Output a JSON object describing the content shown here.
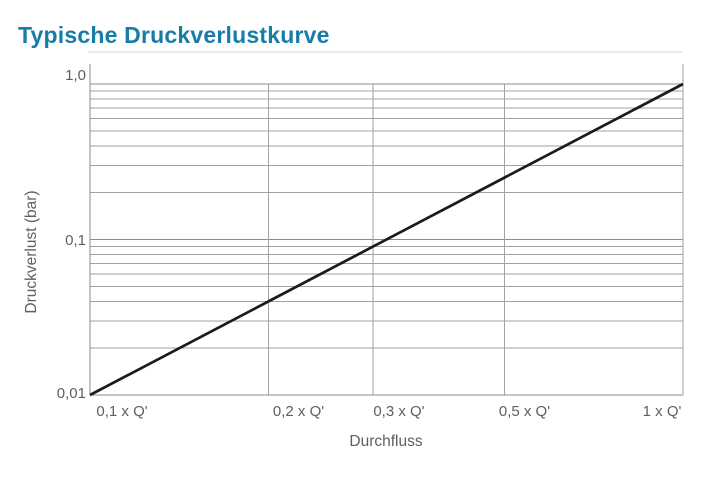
{
  "title": {
    "text": "Typische Druckverlustkurve"
  },
  "colors": {
    "title": "#187CA8",
    "text_gray": "#5f5f5f",
    "grid_minor": "#a2a2a2",
    "grid_major": "#8c8c8c",
    "axis": "#8c8c8c",
    "frame_light": "#d8d8d8",
    "curve": "#1b1b1b",
    "background": "#ffffff"
  },
  "chart_data": {
    "type": "line",
    "title": "Typische Druckverlustkurve",
    "xlabel": "Durchfluss",
    "ylabel": "Druckverlust (bar)",
    "x_scale": "log",
    "y_scale": "log",
    "xlim": [
      0.1,
      1.0
    ],
    "ylim": [
      0.01,
      1.35
    ],
    "grid": true,
    "legend": false,
    "x_ticks": [
      {
        "value": 0.1,
        "label": "0,1 x Q'"
      },
      {
        "value": 0.2,
        "label": "0,2 x Q'"
      },
      {
        "value": 0.3,
        "label": "0,3 x Q'"
      },
      {
        "value": 0.5,
        "label": "0,5 x Q'"
      },
      {
        "value": 1.0,
        "label": "1 x Q'"
      }
    ],
    "y_ticks": [
      {
        "value": 1.0,
        "label": "1,0"
      },
      {
        "value": 0.1,
        "label": "0,1"
      },
      {
        "value": 0.01,
        "label": "0,01"
      }
    ],
    "x_gridlines": [
      0.2,
      0.3,
      0.5
    ],
    "y_gridlines_major": [
      0.1,
      1.0
    ],
    "y_gridlines_minor": [
      0.02,
      0.03,
      0.04,
      0.05,
      0.06,
      0.07,
      0.08,
      0.09,
      0.2,
      0.3,
      0.4,
      0.5,
      0.6,
      0.7,
      0.8,
      0.9
    ],
    "series": [
      {
        "name": "Druckverlustkurve",
        "points": [
          {
            "x": 0.1,
            "y": 0.01
          },
          {
            "x": 0.2,
            "y": 0.04
          },
          {
            "x": 0.3,
            "y": 0.09
          },
          {
            "x": 0.5,
            "y": 0.25
          },
          {
            "x": 1.0,
            "y": 1.0
          }
        ]
      }
    ]
  }
}
